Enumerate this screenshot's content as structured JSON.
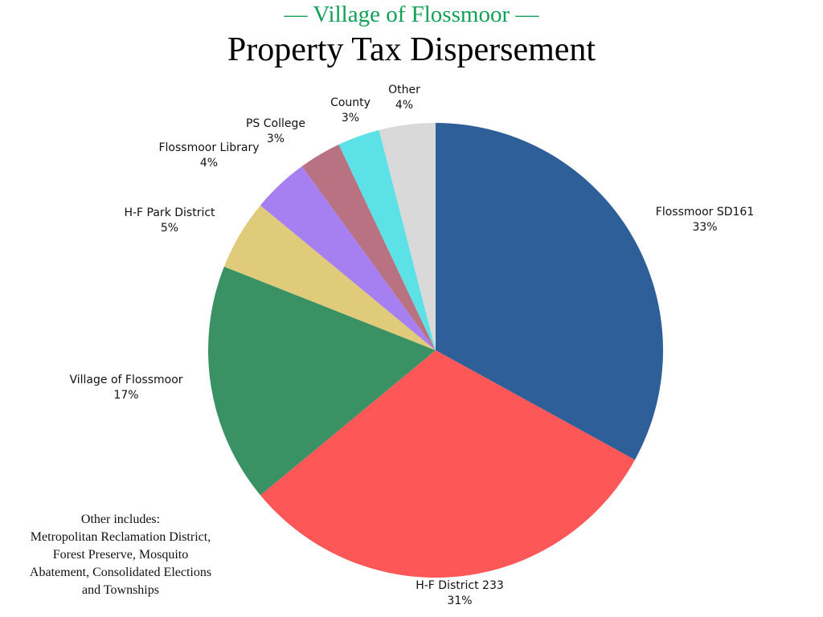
{
  "chart_data": {
    "type": "pie",
    "subtitle": "— Village of Flossmoor —",
    "title": "Property Tax Dispersement",
    "slices": [
      {
        "label": "Flossmoor SD161",
        "value": 33,
        "value_label": "33%",
        "color": "#2e5f98"
      },
      {
        "label": "H-F District 233",
        "value": 31,
        "value_label": "31%",
        "color": "#fd5757"
      },
      {
        "label": "Village of Flossmoor",
        "value": 17,
        "value_label": "17%",
        "color": "#3a9264"
      },
      {
        "label": "H-F Park District",
        "value": 5,
        "value_label": "5%",
        "color": "#e0cb7a"
      },
      {
        "label": "Flossmoor Library",
        "value": 4,
        "value_label": "4%",
        "color": "#a67ff0"
      },
      {
        "label": "PS College",
        "value": 3,
        "value_label": "3%",
        "color": "#b87282"
      },
      {
        "label": "County",
        "value": 3,
        "value_label": "3%",
        "color": "#5ce1e6"
      },
      {
        "label": "Other",
        "value": 4,
        "value_label": "4%",
        "color": "#d9d9d9"
      }
    ],
    "start": "top",
    "direction": "clockwise",
    "annotation": [
      "Other includes:",
      "Metropolitan Reclamation District,",
      "Forest Preserve, Mosquito",
      "Abatement, Consolidated Elections",
      "and Townships"
    ]
  }
}
